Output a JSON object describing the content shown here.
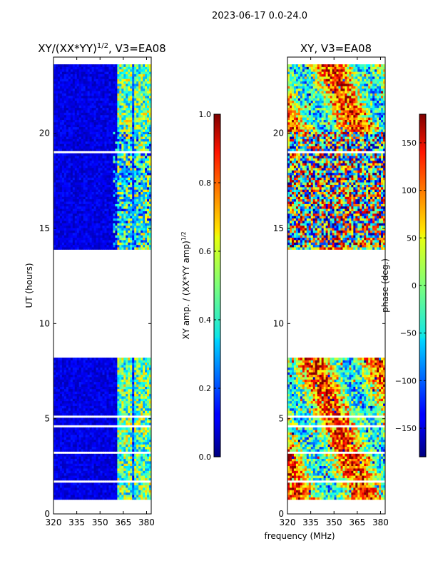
{
  "figure_title": "2023-06-17 0.0-24.0",
  "shared_xlabel": "frequency (MHz)",
  "chart_data": [
    {
      "type": "heatmap",
      "title": "XY/(XX*YY)",
      "title_superscript": "1/2",
      "title_suffix": ", V3=EA08",
      "xlabel": "",
      "ylabel": "UT (hours)",
      "xlim": [
        320,
        383
      ],
      "ylim": [
        0,
        24
      ],
      "xticks": [
        320,
        335,
        350,
        365,
        380
      ],
      "yticks": [
        0,
        5,
        10,
        15,
        20
      ],
      "data_gaps_hours": [
        [
          8.1,
          13.8
        ]
      ],
      "colorbar": {
        "label": "XY amp. / (XX*YY amp)",
        "label_superscript": "1/2",
        "range": [
          0.0,
          1.0
        ],
        "ticks": [
          "0.0",
          "0.2",
          "0.4",
          "0.6",
          "0.8",
          "1.0"
        ],
        "colormap": "jet"
      }
    },
    {
      "type": "heatmap",
      "title": "XY, V3=EA08",
      "xlabel": "frequency (MHz)",
      "ylabel": "",
      "xlim": [
        320,
        383
      ],
      "ylim": [
        0,
        24
      ],
      "xticks": [
        320,
        335,
        350,
        365,
        380
      ],
      "yticks": [
        0,
        5,
        10,
        15,
        20
      ],
      "data_gaps_hours": [
        [
          8.1,
          13.8
        ]
      ],
      "colorbar": {
        "label": "phase (deg.)",
        "range": [
          -180,
          180
        ],
        "ticks": [
          "−150",
          "−100",
          "−50",
          "0",
          "50",
          "100",
          "150"
        ],
        "colormap": "jet"
      }
    }
  ]
}
